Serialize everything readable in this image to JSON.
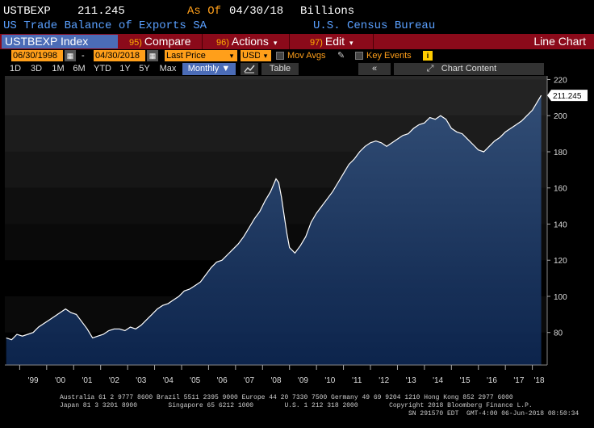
{
  "header": {
    "ticker": "USTBEXP",
    "last_value": "211.245",
    "as_of_label": "As Of",
    "as_of_date": "04/30/18",
    "units": "Billions",
    "description": "US Trade Balance of Exports SA",
    "source": "U.S. Census Bureau"
  },
  "toolbar": {
    "security": "USTBEXP Index",
    "compare_num": "95)",
    "compare_label": "Compare",
    "actions_num": "96)",
    "actions_label": "Actions",
    "edit_num": "97)",
    "edit_label": "Edit",
    "chart_type": "Line Chart"
  },
  "date_row": {
    "start_date": "06/30/1998",
    "end_date": "04/30/2018",
    "price_field": "Last Price",
    "currency": "USD",
    "mov_avgs_label": "Mov Avgs",
    "key_events_label": "Key Events",
    "info_label": "i"
  },
  "period_row": {
    "buttons": [
      "1D",
      "3D",
      "1M",
      "6M",
      "YTD",
      "1Y",
      "5Y",
      "Max"
    ],
    "frequency": "Monthly",
    "table_label": "Table",
    "chart_content_label": "Chart Content"
  },
  "chart_data": {
    "type": "area",
    "title": "",
    "xlabel": "",
    "ylabel": "",
    "ylim": [
      62,
      222
    ],
    "yticks": [
      80,
      100,
      120,
      140,
      160,
      180,
      200,
      220
    ],
    "x_tick_labels": [
      "'99",
      "'00",
      "'01",
      "'02",
      "'03",
      "'04",
      "'05",
      "'06",
      "'07",
      "'08",
      "'09",
      "'10",
      "'11",
      "'12",
      "'13",
      "'14",
      "'15",
      "'16",
      "'17",
      "'18"
    ],
    "x_tick_years": [
      1999,
      2000,
      2001,
      2002,
      2003,
      2004,
      2005,
      2006,
      2007,
      2008,
      2009,
      2010,
      2011,
      2012,
      2013,
      2014,
      2015,
      2016,
      2017,
      2018
    ],
    "last_value_label": "211.245",
    "colors": {
      "fill_top": "#2e4a72",
      "fill_bottom": "#0f2a55",
      "line": "#ffffff"
    },
    "points": [
      [
        1998.5,
        77
      ],
      [
        1998.7,
        76
      ],
      [
        1998.9,
        79
      ],
      [
        1999.1,
        78
      ],
      [
        1999.3,
        79
      ],
      [
        1999.5,
        80
      ],
      [
        1999.7,
        83
      ],
      [
        1999.9,
        85
      ],
      [
        2000.1,
        87
      ],
      [
        2000.3,
        89
      ],
      [
        2000.5,
        91
      ],
      [
        2000.7,
        93
      ],
      [
        2000.9,
        91
      ],
      [
        2001.1,
        90
      ],
      [
        2001.3,
        86
      ],
      [
        2001.5,
        82
      ],
      [
        2001.7,
        77
      ],
      [
        2001.9,
        78
      ],
      [
        2002.1,
        79
      ],
      [
        2002.3,
        81
      ],
      [
        2002.5,
        82
      ],
      [
        2002.7,
        82
      ],
      [
        2002.9,
        81
      ],
      [
        2003.1,
        83
      ],
      [
        2003.3,
        82
      ],
      [
        2003.5,
        84
      ],
      [
        2003.7,
        87
      ],
      [
        2003.9,
        90
      ],
      [
        2004.1,
        93
      ],
      [
        2004.3,
        95
      ],
      [
        2004.5,
        96
      ],
      [
        2004.7,
        98
      ],
      [
        2004.9,
        100
      ],
      [
        2005.1,
        103
      ],
      [
        2005.3,
        104
      ],
      [
        2005.5,
        106
      ],
      [
        2005.7,
        108
      ],
      [
        2005.9,
        112
      ],
      [
        2006.1,
        116
      ],
      [
        2006.3,
        119
      ],
      [
        2006.5,
        120
      ],
      [
        2006.7,
        123
      ],
      [
        2006.9,
        126
      ],
      [
        2007.1,
        129
      ],
      [
        2007.3,
        133
      ],
      [
        2007.5,
        138
      ],
      [
        2007.7,
        143
      ],
      [
        2007.9,
        147
      ],
      [
        2008.1,
        153
      ],
      [
        2008.3,
        158
      ],
      [
        2008.5,
        165
      ],
      [
        2008.6,
        163
      ],
      [
        2008.7,
        155
      ],
      [
        2008.8,
        145
      ],
      [
        2008.9,
        135
      ],
      [
        2009.0,
        127
      ],
      [
        2009.2,
        124
      ],
      [
        2009.4,
        128
      ],
      [
        2009.6,
        133
      ],
      [
        2009.8,
        141
      ],
      [
        2010.0,
        146
      ],
      [
        2010.2,
        150
      ],
      [
        2010.4,
        154
      ],
      [
        2010.6,
        158
      ],
      [
        2010.8,
        163
      ],
      [
        2011.0,
        168
      ],
      [
        2011.2,
        173
      ],
      [
        2011.4,
        176
      ],
      [
        2011.6,
        180
      ],
      [
        2011.8,
        183
      ],
      [
        2012.0,
        185
      ],
      [
        2012.2,
        186
      ],
      [
        2012.4,
        185
      ],
      [
        2012.6,
        183
      ],
      [
        2012.8,
        185
      ],
      [
        2013.0,
        187
      ],
      [
        2013.2,
        189
      ],
      [
        2013.4,
        190
      ],
      [
        2013.6,
        193
      ],
      [
        2013.8,
        195
      ],
      [
        2014.0,
        196
      ],
      [
        2014.2,
        199
      ],
      [
        2014.4,
        198
      ],
      [
        2014.6,
        200
      ],
      [
        2014.8,
        198
      ],
      [
        2015.0,
        193
      ],
      [
        2015.2,
        191
      ],
      [
        2015.4,
        190
      ],
      [
        2015.6,
        187
      ],
      [
        2015.8,
        184
      ],
      [
        2016.0,
        181
      ],
      [
        2016.2,
        180
      ],
      [
        2016.4,
        183
      ],
      [
        2016.6,
        186
      ],
      [
        2016.8,
        188
      ],
      [
        2017.0,
        191
      ],
      [
        2017.2,
        193
      ],
      [
        2017.4,
        195
      ],
      [
        2017.6,
        197
      ],
      [
        2017.8,
        200
      ],
      [
        2018.0,
        203
      ],
      [
        2018.2,
        208
      ],
      [
        2018.33,
        211.245
      ]
    ]
  },
  "footer": {
    "line1": "Australia 61 2 9777 8600 Brazil 5511 2395 9000 Europe 44 20 7330 7500 Germany 49 69 9204 1210 Hong Kong 852 2977 6000",
    "line2": "Japan 81 3 3201 8900        Singapore 65 6212 1000        U.S. 1 212 318 2000        Copyright 2018 Bloomberg Finance L.P.",
    "line3": "SN 291570 EDT  GMT-4:00 06-Jun-2018 08:50:34"
  }
}
